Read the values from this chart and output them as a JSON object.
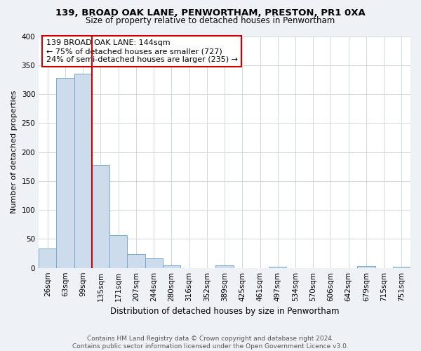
{
  "title1": "139, BROAD OAK LANE, PENWORTHAM, PRESTON, PR1 0XA",
  "title2": "Size of property relative to detached houses in Penwortham",
  "xlabel": "Distribution of detached houses by size in Penwortham",
  "ylabel": "Number of detached properties",
  "bar_labels": [
    "26sqm",
    "63sqm",
    "99sqm",
    "135sqm",
    "171sqm",
    "207sqm",
    "244sqm",
    "280sqm",
    "316sqm",
    "352sqm",
    "389sqm",
    "425sqm",
    "461sqm",
    "497sqm",
    "534sqm",
    "570sqm",
    "606sqm",
    "642sqm",
    "679sqm",
    "715sqm",
    "751sqm"
  ],
  "bar_values": [
    33,
    328,
    335,
    178,
    57,
    24,
    16,
    5,
    0,
    0,
    4,
    0,
    0,
    2,
    0,
    0,
    0,
    0,
    3,
    0,
    2
  ],
  "bar_color": "#ccdcec",
  "bar_edge_color": "#7aaac8",
  "vline_x": 2.5,
  "vline_color": "#cc0000",
  "annotation_text": "139 BROAD OAK LANE: 144sqm\n← 75% of detached houses are smaller (727)\n24% of semi-detached houses are larger (235) →",
  "annotation_box_color": "#ffffff",
  "annotation_box_edge": "#cc0000",
  "ylim": [
    0,
    400
  ],
  "yticks": [
    0,
    50,
    100,
    150,
    200,
    250,
    300,
    350,
    400
  ],
  "footer1": "Contains HM Land Registry data © Crown copyright and database right 2024.",
  "footer2": "Contains public sector information licensed under the Open Government Licence v3.0.",
  "background_color": "#eef2f7",
  "plot_background": "#ffffff",
  "grid_color": "#d0d8e0"
}
